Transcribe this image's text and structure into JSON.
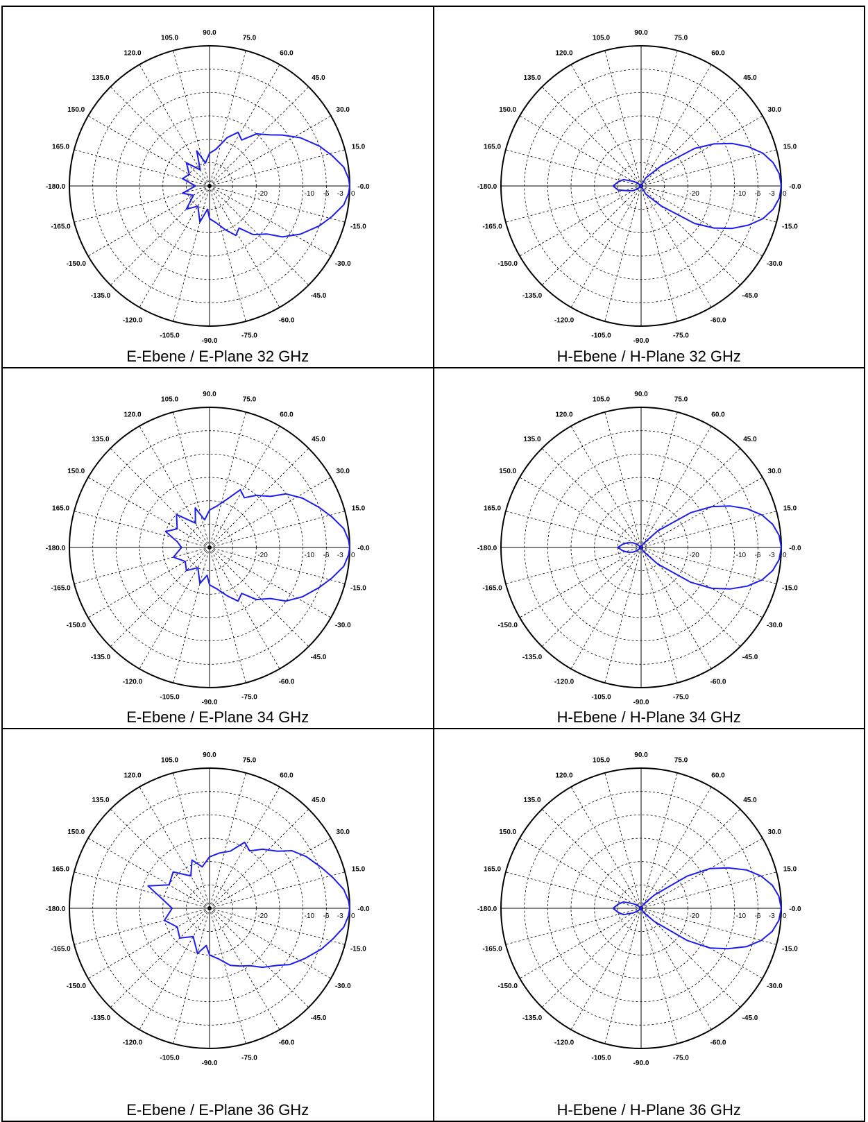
{
  "style": {
    "trace_color": "#1c1cf0",
    "grid_color": "#000000",
    "border_color": "#000000",
    "background": "#ffffff"
  },
  "grid": {
    "angle_labels": [
      "-0.0",
      "15.0",
      "30.0",
      "45.0",
      "60.0",
      "75.0",
      "90.0",
      "105.0",
      "120.0",
      "135.0",
      "150.0",
      "165.0",
      "-180.0",
      "-165.0",
      "-150.0",
      "-135.0",
      "-120.0",
      "-105.0",
      "-90.0",
      "-75.0",
      "-60.0",
      "-45.0",
      "-30.0",
      "-15.0"
    ],
    "radial_labels": [
      "-20",
      "-10",
      "-6",
      "-3",
      "0"
    ]
  },
  "captions": [
    "E-Ebene / E-Plane 32 GHz",
    "H-Ebene / H-Plane 32 GHz",
    "E-Ebene / E-Plane 34 GHz",
    "H-Ebene / H-Plane 34 GHz",
    "E-Ebene / E-Plane 36 GHz",
    "H-Ebene / H-Plane 36 GHz"
  ],
  "chart_data": [
    {
      "type": "polar-line",
      "title": "E-Ebene / E-Plane 32 GHz",
      "angle_unit": "deg",
      "radial_unit": "dB",
      "radial_ticks": [
        -20,
        -10,
        -6,
        -3,
        0
      ],
      "angle_ticks": [
        0,
        15,
        30,
        45,
        60,
        75,
        90,
        105,
        120,
        135,
        150,
        165,
        180,
        -165,
        -150,
        -135,
        -120,
        -105,
        -90,
        -75,
        -60,
        -45,
        -30,
        -15
      ],
      "points": [
        [
          -180,
          -27
        ],
        [
          -165,
          -24
        ],
        [
          -150,
          -26
        ],
        [
          -135,
          -23
        ],
        [
          -120,
          -25
        ],
        [
          -105,
          -22
        ],
        [
          -95,
          -25
        ],
        [
          -90,
          -23
        ],
        [
          -80,
          -22
        ],
        [
          -70,
          -20
        ],
        [
          -62,
          -18
        ],
        [
          -55,
          -19
        ],
        [
          -48,
          -16
        ],
        [
          -40,
          -14
        ],
        [
          -35,
          -11
        ],
        [
          -28,
          -8
        ],
        [
          -20,
          -5
        ],
        [
          -14,
          -3
        ],
        [
          -8,
          -1
        ],
        [
          -3,
          -0.2
        ],
        [
          0,
          0
        ],
        [
          3,
          -0.2
        ],
        [
          8,
          -1
        ],
        [
          14,
          -3
        ],
        [
          20,
          -5
        ],
        [
          28,
          -8
        ],
        [
          35,
          -11
        ],
        [
          40,
          -13
        ],
        [
          48,
          -15
        ],
        [
          55,
          -18
        ],
        [
          62,
          -17
        ],
        [
          70,
          -19
        ],
        [
          80,
          -22
        ],
        [
          90,
          -23
        ],
        [
          100,
          -25
        ],
        [
          110,
          -22
        ],
        [
          120,
          -26
        ],
        [
          135,
          -23
        ],
        [
          150,
          -25
        ],
        [
          165,
          -24
        ],
        [
          180,
          -27
        ]
      ]
    },
    {
      "type": "polar-line",
      "title": "H-Ebene / H-Plane 32 GHz",
      "angle_unit": "deg",
      "radial_unit": "dB",
      "radial_ticks": [
        -20,
        -10,
        -6,
        -3,
        0
      ],
      "angle_ticks": [
        0,
        15,
        30,
        45,
        60,
        75,
        90,
        105,
        120,
        135,
        150,
        165,
        180,
        -165,
        -150,
        -135,
        -120,
        -105,
        -90,
        -75,
        -60,
        -45,
        -30,
        -15
      ],
      "points": [
        [
          -180,
          -24
        ],
        [
          -170,
          -25
        ],
        [
          -160,
          -27
        ],
        [
          -150,
          -28
        ],
        [
          -140,
          -29
        ],
        [
          -120,
          -30
        ],
        [
          -90,
          -30
        ],
        [
          -60,
          -28
        ],
        [
          -45,
          -24
        ],
        [
          -35,
          -16
        ],
        [
          -30,
          -12
        ],
        [
          -25,
          -8.5
        ],
        [
          -20,
          -5.5
        ],
        [
          -15,
          -3
        ],
        [
          -10,
          -1.3
        ],
        [
          -5,
          -0.3
        ],
        [
          0,
          0
        ],
        [
          5,
          -0.3
        ],
        [
          10,
          -1.3
        ],
        [
          15,
          -3
        ],
        [
          20,
          -5.5
        ],
        [
          25,
          -8.5
        ],
        [
          30,
          -12
        ],
        [
          35,
          -16
        ],
        [
          45,
          -24
        ],
        [
          60,
          -28
        ],
        [
          90,
          -30
        ],
        [
          120,
          -30
        ],
        [
          140,
          -29
        ],
        [
          150,
          -28
        ],
        [
          160,
          -26
        ],
        [
          170,
          -25
        ],
        [
          180,
          -24
        ]
      ]
    },
    {
      "type": "polar-line",
      "title": "E-Ebene / E-Plane 34 GHz",
      "angle_unit": "deg",
      "radial_unit": "dB",
      "radial_ticks": [
        -20,
        -10,
        -6,
        -3,
        0
      ],
      "angle_ticks": [
        0,
        15,
        30,
        45,
        60,
        75,
        90,
        105,
        120,
        135,
        150,
        165,
        180,
        -165,
        -150,
        -135,
        -120,
        -105,
        -90,
        -75,
        -60,
        -45,
        -30,
        -15
      ],
      "points": [
        [
          -180,
          -24
        ],
        [
          -165,
          -22
        ],
        [
          -150,
          -24
        ],
        [
          -135,
          -23
        ],
        [
          -120,
          -25
        ],
        [
          -105,
          -22
        ],
        [
          -95,
          -24
        ],
        [
          -90,
          -22
        ],
        [
          -80,
          -21
        ],
        [
          -70,
          -19
        ],
        [
          -62,
          -17
        ],
        [
          -55,
          -18
        ],
        [
          -48,
          -15
        ],
        [
          -40,
          -13
        ],
        [
          -35,
          -10
        ],
        [
          -28,
          -7.5
        ],
        [
          -20,
          -5
        ],
        [
          -14,
          -3
        ],
        [
          -8,
          -1
        ],
        [
          -3,
          -0.2
        ],
        [
          0,
          0
        ],
        [
          3,
          -0.2
        ],
        [
          8,
          -1
        ],
        [
          14,
          -3
        ],
        [
          20,
          -5
        ],
        [
          28,
          -7.5
        ],
        [
          35,
          -10
        ],
        [
          40,
          -13
        ],
        [
          48,
          -15
        ],
        [
          55,
          -17
        ],
        [
          62,
          -16
        ],
        [
          70,
          -19
        ],
        [
          80,
          -21
        ],
        [
          90,
          -22
        ],
        [
          100,
          -24
        ],
        [
          110,
          -21
        ],
        [
          120,
          -24
        ],
        [
          135,
          -20
        ],
        [
          150,
          -22
        ],
        [
          160,
          -20
        ],
        [
          170,
          -23
        ],
        [
          180,
          -24
        ]
      ]
    },
    {
      "type": "polar-line",
      "title": "H-Ebene / H-Plane 34 GHz",
      "angle_unit": "deg",
      "radial_unit": "dB",
      "radial_ticks": [
        -20,
        -10,
        -6,
        -3,
        0
      ],
      "angle_ticks": [
        0,
        15,
        30,
        45,
        60,
        75,
        90,
        105,
        120,
        135,
        150,
        165,
        180,
        -165,
        -150,
        -135,
        -120,
        -105,
        -90,
        -75,
        -60,
        -45,
        -30,
        -15
      ],
      "points": [
        [
          -180,
          -25
        ],
        [
          -170,
          -26
        ],
        [
          -160,
          -27
        ],
        [
          -150,
          -28
        ],
        [
          -140,
          -29
        ],
        [
          -120,
          -30
        ],
        [
          -90,
          -30
        ],
        [
          -60,
          -29
        ],
        [
          -45,
          -25
        ],
        [
          -35,
          -17
        ],
        [
          -30,
          -12.5
        ],
        [
          -25,
          -9
        ],
        [
          -20,
          -5.8
        ],
        [
          -15,
          -3.2
        ],
        [
          -10,
          -1.4
        ],
        [
          -5,
          -0.35
        ],
        [
          0,
          0
        ],
        [
          5,
          -0.35
        ],
        [
          10,
          -1.4
        ],
        [
          15,
          -3.2
        ],
        [
          20,
          -5.8
        ],
        [
          25,
          -9
        ],
        [
          30,
          -12.5
        ],
        [
          35,
          -17
        ],
        [
          45,
          -25
        ],
        [
          60,
          -29
        ],
        [
          90,
          -30
        ],
        [
          120,
          -30
        ],
        [
          140,
          -29
        ],
        [
          150,
          -28
        ],
        [
          160,
          -27
        ],
        [
          170,
          -26
        ],
        [
          180,
          -25
        ]
      ]
    },
    {
      "type": "polar-line",
      "title": "E-Ebene / E-Plane 36 GHz",
      "angle_unit": "deg",
      "radial_unit": "dB",
      "radial_ticks": [
        -20,
        -10,
        -6,
        -3,
        0
      ],
      "angle_ticks": [
        0,
        15,
        30,
        45,
        60,
        75,
        90,
        105,
        120,
        135,
        150,
        165,
        180,
        -165,
        -150,
        -135,
        -120,
        -105,
        -90,
        -75,
        -60,
        -45,
        -30,
        -15
      ],
      "points": [
        [
          -180,
          -22
        ],
        [
          -165,
          -20
        ],
        [
          -150,
          -22
        ],
        [
          -135,
          -21
        ],
        [
          -120,
          -23
        ],
        [
          -105,
          -20
        ],
        [
          -95,
          -22
        ],
        [
          -90,
          -20
        ],
        [
          -80,
          -19
        ],
        [
          -70,
          -17
        ],
        [
          -62,
          -16
        ],
        [
          -55,
          -15
        ],
        [
          -48,
          -13
        ],
        [
          -40,
          -11
        ],
        [
          -35,
          -9
        ],
        [
          -28,
          -7
        ],
        [
          -20,
          -4.5
        ],
        [
          -14,
          -2.8
        ],
        [
          -8,
          -1
        ],
        [
          -3,
          -0.2
        ],
        [
          0,
          0
        ],
        [
          3,
          -0.2
        ],
        [
          8,
          -1
        ],
        [
          14,
          -2.8
        ],
        [
          20,
          -4.5
        ],
        [
          28,
          -6.5
        ],
        [
          35,
          -8.5
        ],
        [
          40,
          -11
        ],
        [
          48,
          -13
        ],
        [
          55,
          -15
        ],
        [
          62,
          -14
        ],
        [
          70,
          -17
        ],
        [
          80,
          -18
        ],
        [
          90,
          -19
        ],
        [
          100,
          -21
        ],
        [
          110,
          -19
        ],
        [
          120,
          -22
        ],
        [
          135,
          -19
        ],
        [
          150,
          -20
        ],
        [
          160,
          -16
        ],
        [
          170,
          -20
        ],
        [
          180,
          -22
        ]
      ]
    },
    {
      "type": "polar-line",
      "title": "H-Ebene / H-Plane 36 GHz",
      "angle_unit": "deg",
      "radial_unit": "dB",
      "radial_ticks": [
        -20,
        -10,
        -6,
        -3,
        0
      ],
      "angle_ticks": [
        0,
        15,
        30,
        45,
        60,
        75,
        90,
        105,
        120,
        135,
        150,
        165,
        180,
        -165,
        -150,
        -135,
        -120,
        -105,
        -90,
        -75,
        -60,
        -45,
        -30,
        -15
      ],
      "points": [
        [
          -180,
          -24
        ],
        [
          -170,
          -25
        ],
        [
          -160,
          -26
        ],
        [
          -150,
          -28
        ],
        [
          -140,
          -29
        ],
        [
          -120,
          -30
        ],
        [
          -90,
          -30
        ],
        [
          -60,
          -29
        ],
        [
          -45,
          -26
        ],
        [
          -35,
          -18
        ],
        [
          -30,
          -13
        ],
        [
          -25,
          -9.5
        ],
        [
          -20,
          -6
        ],
        [
          -15,
          -3.4
        ],
        [
          -10,
          -1.5
        ],
        [
          -5,
          -0.4
        ],
        [
          0,
          0
        ],
        [
          5,
          -0.4
        ],
        [
          10,
          -1.5
        ],
        [
          15,
          -3.4
        ],
        [
          20,
          -6
        ],
        [
          25,
          -9.5
        ],
        [
          30,
          -13
        ],
        [
          35,
          -18
        ],
        [
          45,
          -26
        ],
        [
          60,
          -29
        ],
        [
          90,
          -30
        ],
        [
          120,
          -30
        ],
        [
          140,
          -29
        ],
        [
          150,
          -28
        ],
        [
          160,
          -26
        ],
        [
          170,
          -25
        ],
        [
          180,
          -24
        ]
      ]
    }
  ]
}
